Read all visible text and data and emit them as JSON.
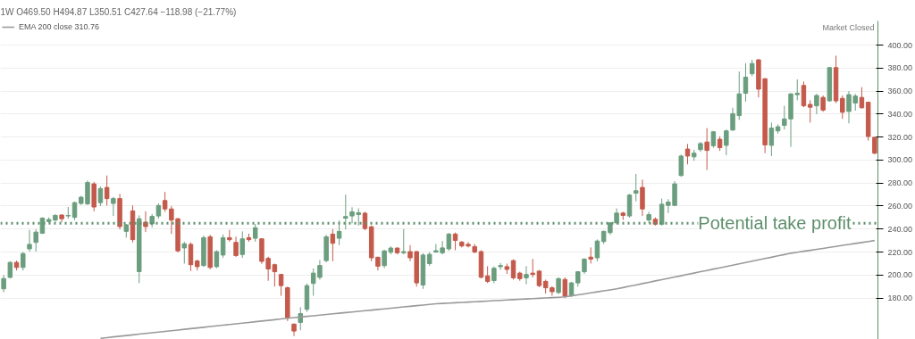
{
  "chart_data": {
    "type": "candlestick",
    "title": "1W  O469.50 H494.87 L350.51 C427.64 −118.98 (−21.77%)",
    "categories": [
      null,
      null,
      null,
      null,
      null,
      null,
      null,
      null,
      null,
      null,
      null,
      null,
      null,
      null,
      null,
      null,
      null,
      null,
      null,
      null,
      null,
      null,
      null,
      null,
      null,
      null,
      null,
      null,
      null,
      null,
      null,
      null,
      null,
      null,
      null,
      null,
      null,
      null,
      null,
      null,
      null,
      null,
      null,
      null,
      null,
      null,
      null,
      null,
      null,
      null,
      null,
      null,
      null,
      null,
      null,
      null,
      null,
      null,
      null,
      null,
      null,
      null,
      null,
      null,
      null,
      null,
      null,
      null,
      null,
      null,
      null,
      null,
      null,
      null,
      null,
      null,
      null,
      null,
      null,
      null,
      null,
      null,
      null,
      null,
      null,
      null,
      null,
      null,
      null,
      null,
      null,
      null,
      null,
      null,
      null,
      null,
      null,
      null,
      null,
      null,
      null,
      null,
      null,
      null,
      null,
      null,
      null,
      null,
      null,
      null,
      null,
      null,
      null,
      null,
      null,
      null,
      null,
      null,
      null,
      null,
      null,
      null,
      null,
      null,
      null,
      null,
      null,
      null,
      null,
      null,
      null,
      null,
      null,
      null,
      null,
      null
    ],
    "series": [
      {
        "ohlc": [
          [
            188,
            200,
            185,
            197
          ],
          [
            198,
            212,
            197,
            211
          ],
          [
            211,
            212.6,
            204,
            206.6
          ],
          [
            206.6,
            220,
            204,
            218.7
          ],
          [
            222.8,
            239.3,
            220.4,
            226.7
          ],
          [
            228.4,
            239.8,
            220.4,
            237.4
          ],
          [
            236.4,
            250.2,
            235.7,
            249.5
          ],
          [
            246.6,
            250.2,
            245.4,
            248.3
          ],
          [
            247.8,
            252.9,
            246.6,
            251.9
          ],
          [
            252.2,
            253,
            246,
            249
          ],
          [
            251.4,
            259.2,
            249,
            251.9
          ],
          [
            250.2,
            264,
            247.8,
            263
          ],
          [
            262.3,
            268.9,
            261,
            267.7
          ],
          [
            261.9,
            282.3,
            261,
            280.5
          ],
          [
            279.3,
            281,
            255.5,
            259.2
          ],
          [
            263,
            277,
            260,
            275.2
          ],
          [
            276.2,
            286.6,
            260.5,
            266.5
          ],
          [
            262.3,
            268,
            251.4,
            266.5
          ],
          [
            266.5,
            270.6,
            239.8,
            242.2
          ],
          [
            238,
            244.5,
            232.6,
            243.7
          ],
          [
            255.8,
            260.5,
            228.4,
            230.8
          ],
          [
            203,
            252,
            193,
            249
          ],
          [
            246,
            255.5,
            237.4,
            242.2
          ],
          [
            244.5,
            253,
            241.5,
            251
          ],
          [
            251.4,
            262.3,
            249,
            260.5
          ],
          [
            264.8,
            272.3,
            255,
            257.5
          ],
          [
            257.5,
            260,
            235.7,
            247.8
          ],
          [
            249,
            249.5,
            219.7,
            221.1
          ],
          [
            223.6,
            229,
            210,
            227.2
          ],
          [
            226.7,
            228.4,
            203.5,
            209
          ],
          [
            212.2,
            213.5,
            204,
            207.3
          ],
          [
            208.3,
            234.3,
            207,
            232.5
          ],
          [
            233.3,
            235,
            205,
            206.6
          ],
          [
            207.3,
            221.6,
            206,
            220.4
          ],
          [
            217.4,
            235.4,
            215,
            232.5
          ],
          [
            232.5,
            239.3,
            229,
            230.8
          ],
          [
            228.4,
            233.4,
            215.7,
            217
          ],
          [
            217.9,
            238,
            215,
            231.5
          ],
          [
            232.5,
            236,
            229,
            230.8
          ],
          [
            232,
            244.5,
            229,
            241.2
          ],
          [
            231.5,
            232,
            209.8,
            211.9
          ],
          [
            214.5,
            216,
            195,
            205.3
          ],
          [
            209,
            210,
            190,
            202.9
          ],
          [
            200.5,
            201,
            182,
            190.8
          ],
          [
            189,
            190,
            160,
            162.9
          ],
          [
            157.3,
            158,
            147,
            151.3
          ],
          [
            158.8,
            172,
            152,
            166.5
          ],
          [
            170.2,
            192.6,
            168,
            190.8
          ],
          [
            192.7,
            205.7,
            182,
            201.7
          ],
          [
            198,
            213,
            196,
            208.3
          ],
          [
            212.6,
            235,
            211,
            233.3
          ],
          [
            235.6,
            240,
            212,
            227.6
          ],
          [
            232,
            247.4,
            226,
            238
          ],
          [
            249.4,
            270,
            239.7,
            250.9
          ],
          [
            251.4,
            259,
            245,
            255
          ],
          [
            252.6,
            258,
            243,
            254.3
          ],
          [
            253.8,
            255,
            239,
            240.5
          ],
          [
            242,
            243,
            212,
            215
          ],
          [
            215.5,
            216,
            204,
            207.7
          ],
          [
            208.2,
            222,
            206,
            221
          ],
          [
            219.9,
            225,
            218,
            223.5
          ],
          [
            223.5,
            224,
            218,
            219.4
          ],
          [
            219.4,
            240,
            218,
            220.4
          ],
          [
            220.4,
            226,
            212,
            215
          ],
          [
            220.4,
            221,
            190,
            193.2
          ],
          [
            191.3,
            219,
            188,
            217.4
          ],
          [
            210,
            220,
            208,
            218
          ],
          [
            220,
            227,
            219.4,
            221.2
          ],
          [
            219.4,
            229.6,
            218,
            223.6
          ],
          [
            222.8,
            236.6,
            221,
            235.7
          ],
          [
            235.7,
            237,
            221.6,
            230.1
          ],
          [
            228.7,
            229.5,
            224,
            225.3
          ],
          [
            226.7,
            228.7,
            224,
            225.3
          ],
          [
            224.8,
            227,
            219,
            220
          ],
          [
            220.4,
            221.6,
            197,
            198.1
          ],
          [
            199.3,
            207.7,
            193,
            194.5
          ],
          [
            195.2,
            207.5,
            193,
            205.9
          ],
          [
            207.3,
            210.5,
            204.5,
            208.3
          ],
          [
            207.3,
            210,
            201,
            204.9
          ],
          [
            212.6,
            213.6,
            196,
            197.6
          ],
          [
            201.7,
            203,
            195,
            196.9
          ],
          [
            197.6,
            207.7,
            192,
            200.5
          ],
          [
            201.7,
            214,
            198,
            200.5
          ],
          [
            203.4,
            204.4,
            189.5,
            190.8
          ],
          [
            194.5,
            196,
            184,
            188.9
          ],
          [
            188.9,
            190.4,
            182,
            185.5
          ],
          [
            184.8,
            198,
            183.5,
            196.9
          ],
          [
            196.2,
            198,
            180,
            181.6
          ],
          [
            182.3,
            194,
            181,
            193.2
          ],
          [
            193.2,
            203.4,
            190,
            202.9
          ],
          [
            202.9,
            214.6,
            201,
            213.9
          ],
          [
            215.6,
            224,
            210,
            213.9
          ],
          [
            215,
            231,
            212,
            229.6
          ],
          [
            229.1,
            238.7,
            227,
            238
          ],
          [
            236.9,
            246,
            235,
            245.4
          ],
          [
            245.4,
            258,
            244,
            253.9
          ],
          [
            253.9,
            255,
            248,
            251.9
          ],
          [
            251.4,
            270.5,
            250,
            269.6
          ],
          [
            271.2,
            288,
            264,
            273.3
          ],
          [
            276.2,
            283,
            251.4,
            257.5
          ],
          [
            247.8,
            255,
            245,
            252.6
          ],
          [
            248.5,
            250.2,
            243,
            244.2
          ],
          [
            244.2,
            266.5,
            243,
            261.6
          ],
          [
            260.6,
            266,
            253.9,
            263.5
          ],
          [
            260.6,
            281.7,
            259.9,
            279.3
          ],
          [
            286.6,
            304.8,
            285.4,
            303.5
          ],
          [
            309.6,
            314,
            296.3,
            303.5
          ],
          [
            302.8,
            309,
            299.4,
            306
          ],
          [
            309.1,
            315.7,
            307.2,
            314.4
          ],
          [
            315.7,
            327.8,
            291.4,
            308.4
          ],
          [
            312.5,
            325.4,
            310.8,
            324.6
          ],
          [
            318.1,
            320.6,
            308,
            310.8
          ],
          [
            312.8,
            326.6,
            304.3,
            325.4
          ],
          [
            326.1,
            345.5,
            325.4,
            340.4
          ],
          [
            338.7,
            377,
            335,
            357.6
          ],
          [
            358.1,
            384.3,
            350.8,
            372.1
          ],
          [
            375.1,
            387.2,
            373,
            384
          ],
          [
            387.2,
            387.7,
            354.5,
            361.7
          ],
          [
            370.7,
            371.4,
            306,
            313.2
          ],
          [
            312.8,
            332.6,
            303.5,
            327.8
          ],
          [
            325.4,
            331,
            323,
            329
          ],
          [
            330.2,
            347.2,
            326.6,
            335.8
          ],
          [
            335.8,
            358.1,
            311.5,
            357.6
          ],
          [
            356.9,
            370.2,
            352,
            358.1
          ],
          [
            364.9,
            368.3,
            346,
            347.2
          ],
          [
            348.4,
            352,
            332.6,
            346
          ],
          [
            347.2,
            357.6,
            339.9,
            356.2
          ],
          [
            354.5,
            356.2,
            342,
            343.5
          ],
          [
            351.5,
            381.1,
            350.8,
            380.4
          ],
          [
            380.4,
            390.8,
            349.6,
            351.5
          ],
          [
            353.7,
            356.2,
            335.8,
            341.6
          ],
          [
            342.3,
            360,
            331.9,
            356.9
          ],
          [
            349.6,
            357.6,
            343,
            355.7
          ],
          [
            354.5,
            363.4,
            344.8,
            345.5
          ],
          [
            350.3,
            350.8,
            316.9,
            320.5
          ],
          [
            319.8,
            320.5,
            305,
            306
          ]
        ],
        "colors": [
          "#6b9e7e",
          "#6b9e7e",
          "#c45a4b",
          "#6b9e7e",
          "#6b9e7e",
          "#6b9e7e",
          "#6b9e7e",
          "#6b9e7e",
          "#6b9e7e",
          "#c45a4b",
          "#6b9e7e",
          "#6b9e7e",
          "#6b9e7e",
          "#6b9e7e",
          "#c45a4b",
          "#6b9e7e",
          "#c45a4b",
          "#6b9e7e",
          "#c45a4b",
          "#6b9e7e",
          "#c45a4b",
          "#6b9e7e",
          "#c45a4b",
          "#6b9e7e",
          "#6b9e7e",
          "#c45a4b",
          "#c45a4b",
          "#c45a4b",
          "#6b9e7e",
          "#c45a4b",
          "#c45a4b",
          "#6b9e7e",
          "#c45a4b",
          "#6b9e7e",
          "#6b9e7e",
          "#c45a4b",
          "#c45a4b",
          "#6b9e7e",
          "#c45a4b",
          "#6b9e7e",
          "#c45a4b",
          "#c45a4b",
          "#c45a4b",
          "#c45a4b",
          "#c45a4b",
          "#c45a4b",
          "#6b9e7e",
          "#6b9e7e",
          "#6b9e7e",
          "#6b9e7e",
          "#6b9e7e",
          "#c45a4b",
          "#6b9e7e",
          "#6b9e7e",
          "#6b9e7e",
          "#6b9e7e",
          "#c45a4b",
          "#c45a4b",
          "#c45a4b",
          "#6b9e7e",
          "#6b9e7e",
          "#c45a4b",
          "#6b9e7e",
          "#c45a4b",
          "#c45a4b",
          "#6b9e7e",
          "#6b9e7e",
          "#6b9e7e",
          "#6b9e7e",
          "#6b9e7e",
          "#c45a4b",
          "#c45a4b",
          "#c45a4b",
          "#c45a4b",
          "#c45a4b",
          "#c45a4b",
          "#6b9e7e",
          "#6b9e7e",
          "#c45a4b",
          "#c45a4b",
          "#c45a4b",
          "#6b9e7e",
          "#c45a4b",
          "#c45a4b",
          "#c45a4b",
          "#c45a4b",
          "#6b9e7e",
          "#c45a4b",
          "#6b9e7e",
          "#6b9e7e",
          "#6b9e7e",
          "#c45a4b",
          "#6b9e7e",
          "#6b9e7e",
          "#6b9e7e",
          "#6b9e7e",
          "#c45a4b",
          "#6b9e7e",
          "#6b9e7e",
          "#c45a4b",
          "#6b9e7e",
          "#c45a4b",
          "#6b9e7e",
          "#6b9e7e",
          "#6b9e7e",
          "#6b9e7e",
          "#c45a4b",
          "#6b9e7e",
          "#6b9e7e",
          "#c45a4b",
          "#6b9e7e",
          "#c45a4b",
          "#6b9e7e",
          "#6b9e7e",
          "#6b9e7e",
          "#6b9e7e",
          "#6b9e7e",
          "#c45a4b",
          "#c45a4b",
          "#6b9e7e",
          "#6b9e7e",
          "#6b9e7e",
          "#6b9e7e",
          "#6b9e7e",
          "#c45a4b",
          "#c45a4b",
          "#6b9e7e",
          "#c45a4b",
          "#6b9e7e",
          "#c45a4b",
          "#c45a4b",
          "#6b9e7e",
          "#6b9e7e",
          "#c45a4b",
          "#c45a4b",
          "#c45a4b"
        ]
      },
      {
        "type": "line",
        "name": "EMA 200 close 310.76",
        "color": "#9a9a9a",
        "values": [
          null,
          null,
          null,
          null,
          null,
          null,
          null,
          null,
          null,
          null,
          null,
          null,
          null,
          null,
          null,
          145.0,
          145.6,
          146.2,
          146.8,
          147.4,
          148.0,
          148.6,
          149.2,
          149.8,
          150.4,
          151.0,
          151.6,
          152.2,
          152.8,
          153.4,
          154.0,
          154.6,
          155.2,
          155.8,
          156.4,
          157.0,
          157.6,
          158.2,
          158.8,
          159.4,
          160.0,
          160.6,
          161.2,
          161.8,
          162.4,
          163.0,
          163.5,
          164.1,
          164.6,
          165.2,
          165.7,
          166.3,
          166.8,
          167.4,
          167.9,
          168.5,
          169.0,
          169.5,
          170.1,
          170.6,
          171.2,
          171.7,
          172.3,
          172.8,
          173.4,
          173.9,
          174.5,
          175.0,
          175.3,
          175.6,
          175.9,
          176.2,
          176.5,
          176.8,
          177.1,
          177.4,
          177.7,
          178.0,
          178.3,
          178.6,
          178.9,
          179.2,
          179.5,
          179.8,
          180.1,
          180.4,
          180.7,
          181.0,
          181.9,
          182.8,
          183.6,
          184.5,
          185.4,
          186.3,
          187.1,
          188.0,
          189.1,
          190.3,
          191.4,
          192.6,
          193.7,
          194.9,
          196.0,
          197.1,
          198.3,
          199.4,
          200.6,
          201.7,
          202.9,
          204.0,
          205.2,
          206.3,
          207.5,
          208.6,
          209.8,
          210.9,
          212.1,
          213.2,
          214.4,
          215.5,
          216.7,
          217.8,
          219.0,
          219.8,
          220.7,
          221.5,
          222.4,
          223.2,
          224.1,
          224.9,
          225.8,
          226.6,
          227.5,
          228.3,
          229.2,
          230.0
        ]
      }
    ],
    "ylim": [
      144,
      421
    ],
    "yticks": [
      {
        "value": 180,
        "label": "180.00"
      },
      {
        "value": 200,
        "label": "200.00"
      },
      {
        "value": 220,
        "label": "220.00"
      },
      {
        "value": 240,
        "label": "240.00"
      },
      {
        "value": 260,
        "label": "260.00"
      },
      {
        "value": 280,
        "label": "280.00"
      },
      {
        "value": 300,
        "label": "300.00"
      },
      {
        "value": 320,
        "label": "320.00"
      },
      {
        "value": 340,
        "label": "340.00"
      },
      {
        "value": 360,
        "label": "360.00"
      },
      {
        "value": 380,
        "label": "380.00"
      },
      {
        "value": 400,
        "label": "400.00"
      }
    ],
    "ref_lines": [
      {
        "axis": "y",
        "value": 245,
        "label": "Potential take profit",
        "color": "#5e8f6b",
        "line_style": "dotted"
      }
    ],
    "annotations": [
      "Market Closed"
    ],
    "grid": "y",
    "legend": "top left",
    "tick_labels": "y"
  }
}
